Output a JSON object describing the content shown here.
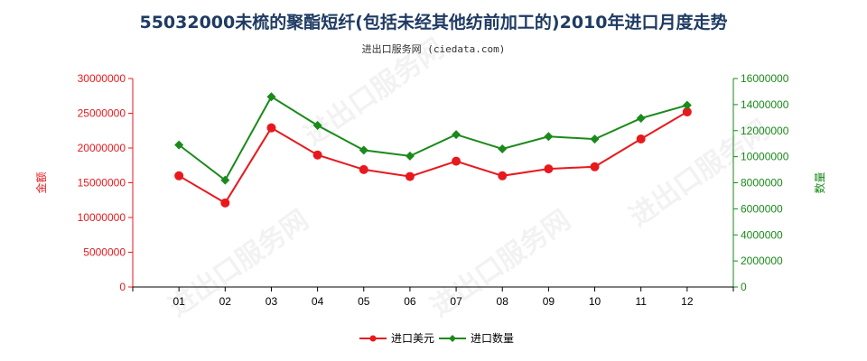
{
  "chart_data": {
    "type": "line",
    "title": "55032000未梳的聚酯短纤(包括未经其他纺前加工的)2010年进口月度走势",
    "subtitle": "进出口服务网 (ciedata.com)",
    "categories": [
      "01",
      "02",
      "03",
      "04",
      "05",
      "06",
      "07",
      "08",
      "09",
      "10",
      "11",
      "12"
    ],
    "left_axis": {
      "label": "金额",
      "ylim": [
        0,
        30000000
      ],
      "ticks": [
        0,
        5000000,
        10000000,
        15000000,
        20000000,
        25000000,
        30000000
      ],
      "color": "#e8191d"
    },
    "right_axis": {
      "label": "数量",
      "ylim": [
        0,
        16000000
      ],
      "ticks": [
        0,
        2000000,
        4000000,
        6000000,
        8000000,
        10000000,
        12000000,
        14000000,
        16000000
      ],
      "color": "#1a8a1a"
    },
    "series": [
      {
        "name": "进口美元",
        "axis": "left",
        "color": "#e8191d",
        "marker": "circle",
        "values": [
          16000000,
          12100000,
          22900000,
          19000000,
          16900000,
          15900000,
          18100000,
          16000000,
          17000000,
          17300000,
          21300000,
          25200000
        ]
      },
      {
        "name": "进口数量",
        "axis": "right",
        "color": "#1a8a1a",
        "marker": "diamond",
        "values": [
          10900000,
          8200000,
          14600000,
          12400000,
          10500000,
          10050000,
          11700000,
          10600000,
          11550000,
          11350000,
          12950000,
          13950000
        ]
      }
    ],
    "legend_position": "bottom-center",
    "grid": false,
    "watermark": "进出口服务网"
  }
}
